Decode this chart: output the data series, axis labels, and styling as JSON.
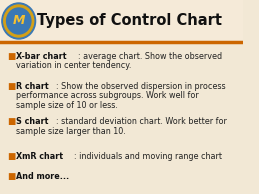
{
  "title": "Types of Control Chart",
  "bg_color": "#f2e8d5",
  "orange_line_color": "#cc6600",
  "title_color": "#111111",
  "title_fontsize": 10.5,
  "bullet_color": "#cc6600",
  "bullet_char": "■",
  "text_color": "#222222",
  "bold_color": "#111111",
  "items": [
    {
      "bold": "X-bar chart",
      "rest": ": average chart. Show the observed\nvariation in center tendency."
    },
    {
      "bold": "R chart",
      "rest": ": Show the observed dispersion in process\nperformance across subgroups. Work well for\nsample size of 10 or less."
    },
    {
      "bold": "S chart",
      "rest": ": standard deviation chart. Work better for\nsample size larger than 10."
    },
    {
      "bold": "XmR chart",
      "rest": ": individuals and moving range chart"
    },
    {
      "bold": "And more...",
      "rest": ""
    }
  ],
  "item_fontsize": 5.8,
  "logo_outer_color": "#3a7bbf",
  "logo_ring_color": "#f5c842",
  "logo_bg": "#3a7bbf"
}
